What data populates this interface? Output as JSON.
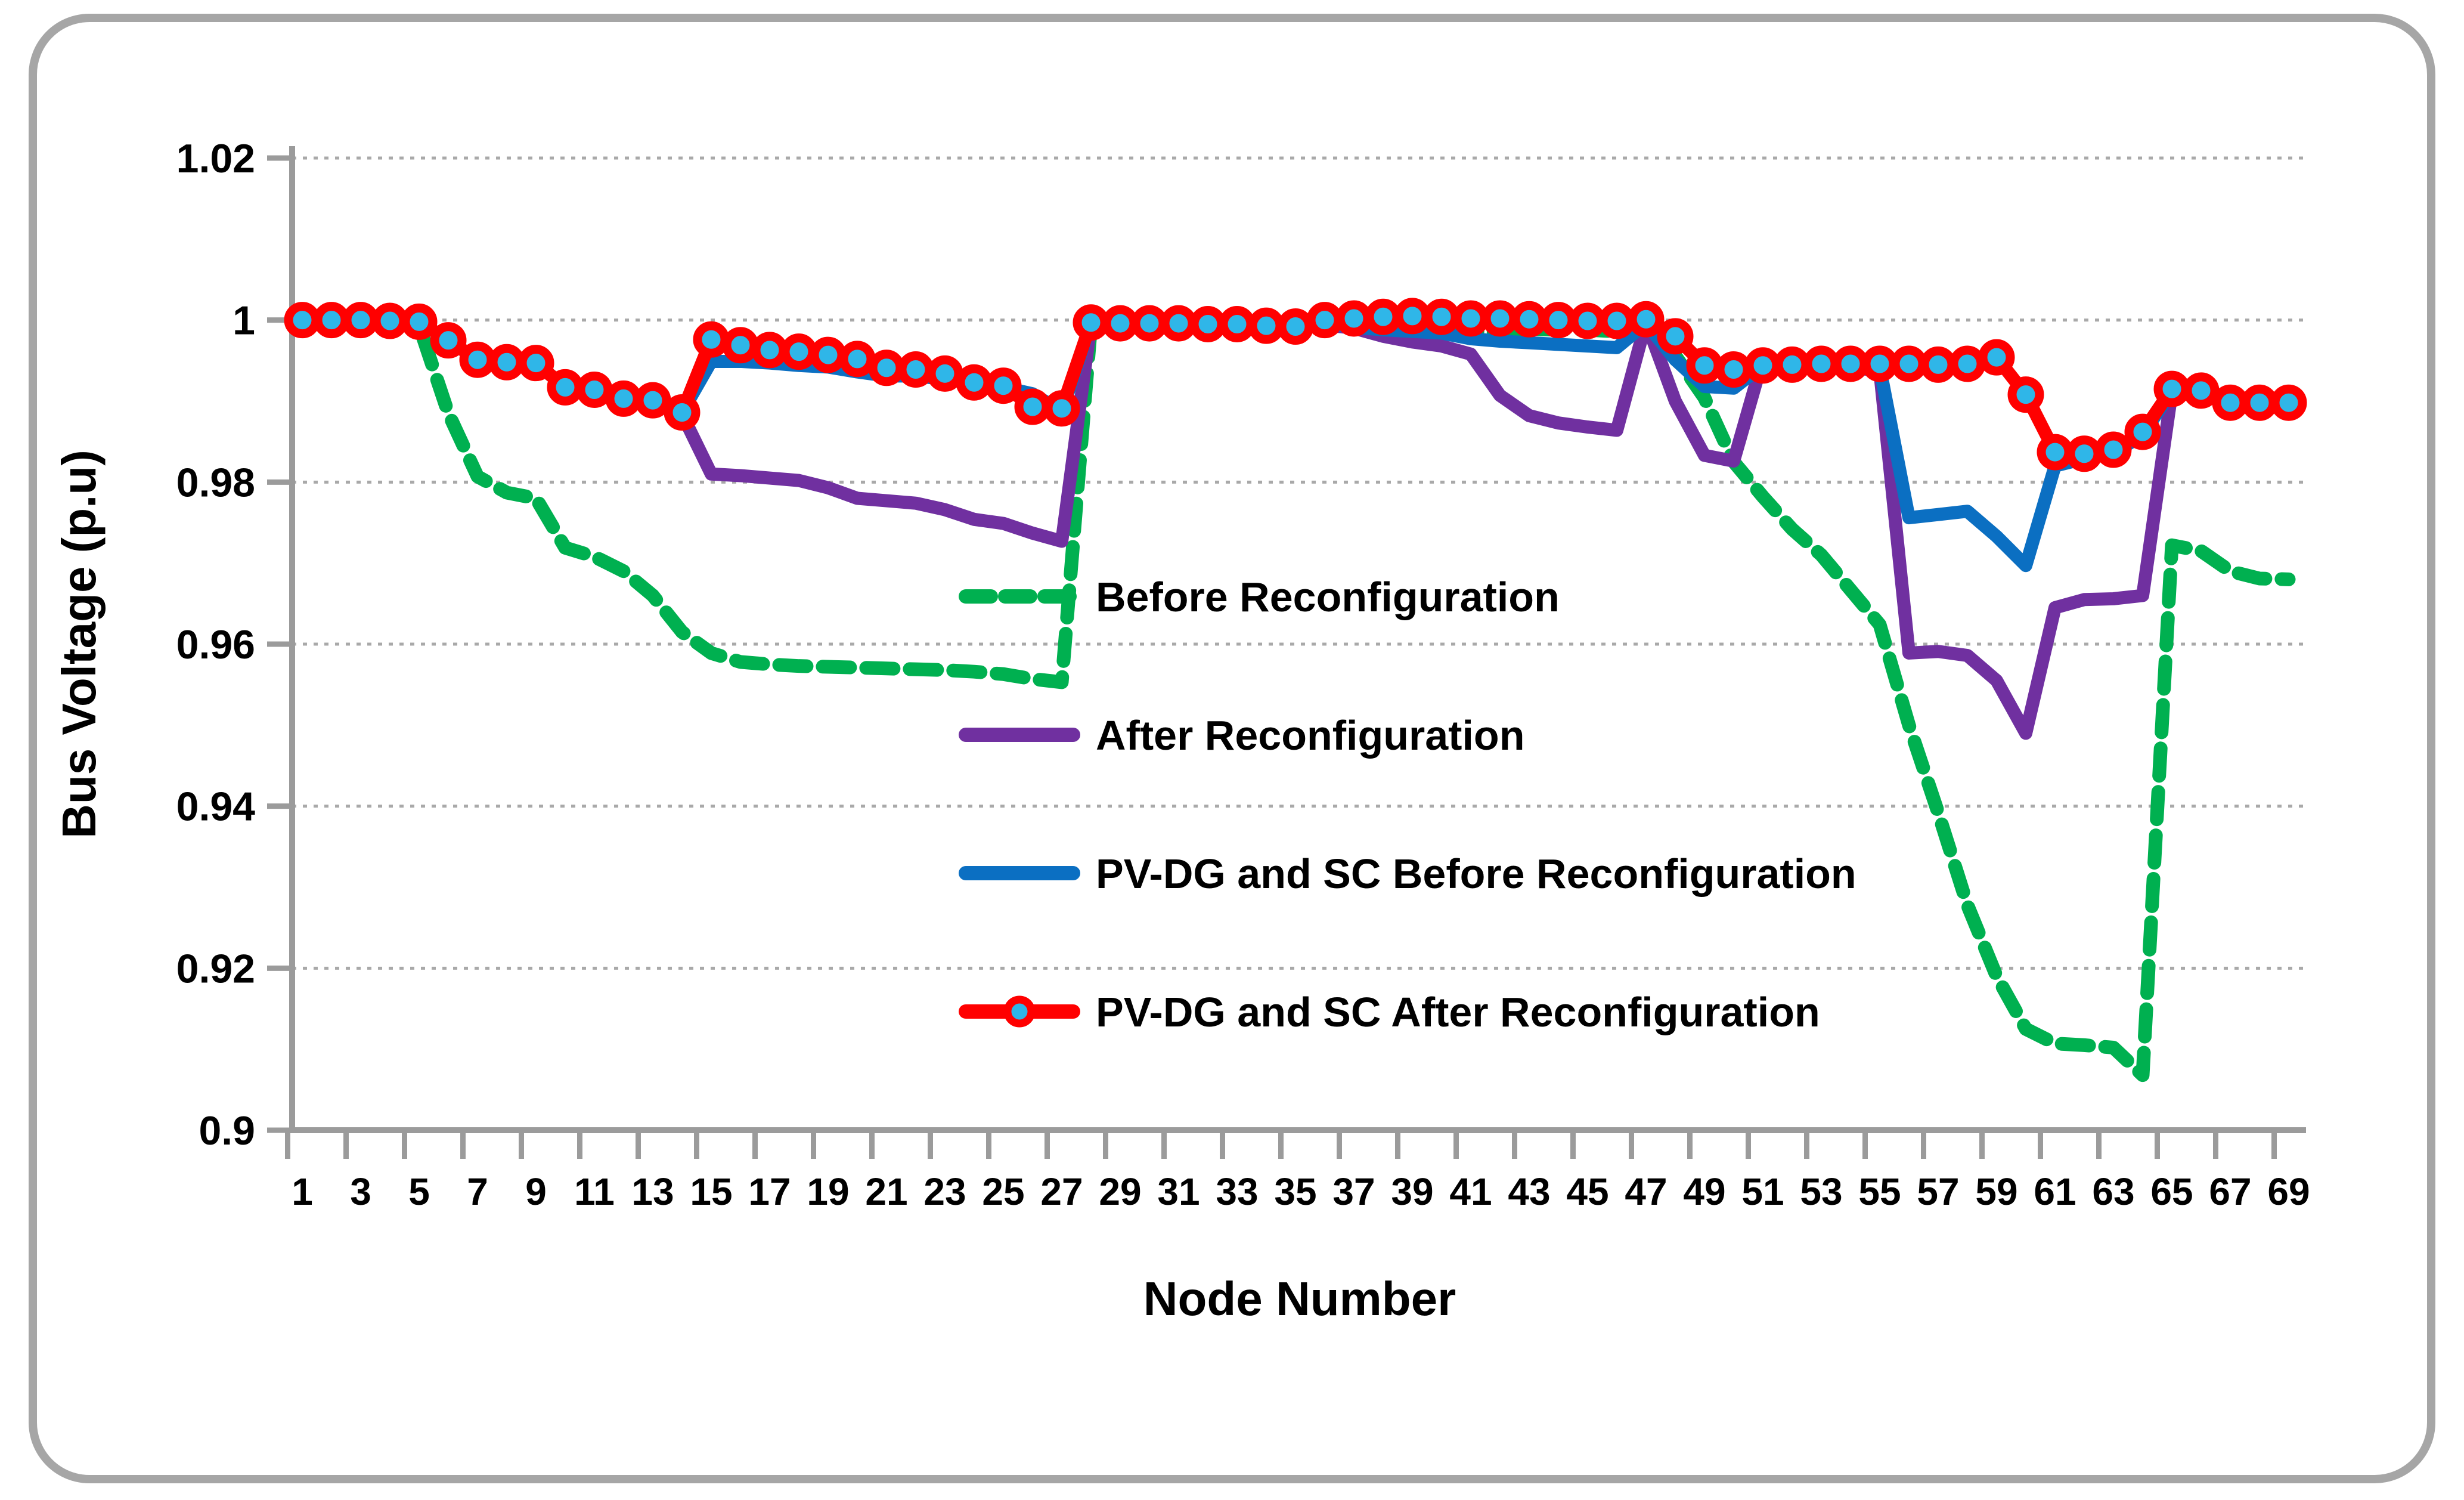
{
  "chart_data": {
    "type": "line",
    "title": "",
    "xlabel": "Node Number",
    "ylabel": "Bus Voltage (p.u)",
    "ylim": [
      0.9,
      1.02
    ],
    "grid": true,
    "legend_position": "inside-center",
    "y_ticks": [
      {
        "label": "1.02",
        "value": 1.02
      },
      {
        "label": "1",
        "value": 1.0
      },
      {
        "label": "0.98",
        "value": 0.98
      },
      {
        "label": "0.96",
        "value": 0.96
      },
      {
        "label": "0.94",
        "value": 0.94
      },
      {
        "label": "0.92",
        "value": 0.92
      },
      {
        "label": "0.9",
        "value": 0.9
      }
    ],
    "x_tick_labels": [
      "1",
      "3",
      "5",
      "7",
      "9",
      "11",
      "13",
      "15",
      "17",
      "19",
      "21",
      "23",
      "25",
      "27",
      "29",
      "31",
      "33",
      "35",
      "37",
      "39",
      "41",
      "43",
      "45",
      "47",
      "49",
      "51",
      "53",
      "55",
      "57",
      "59",
      "61",
      "63",
      "65",
      "67",
      "69"
    ],
    "x_nodes": [
      1,
      2,
      3,
      4,
      5,
      6,
      7,
      8,
      9,
      10,
      11,
      12,
      13,
      14,
      15,
      16,
      17,
      18,
      19,
      20,
      21,
      22,
      23,
      24,
      25,
      26,
      27,
      28,
      29,
      30,
      31,
      32,
      33,
      34,
      35,
      36,
      37,
      38,
      39,
      40,
      41,
      42,
      43,
      44,
      45,
      46,
      47,
      48,
      49,
      50,
      51,
      52,
      53,
      54,
      55,
      56,
      57,
      58,
      59,
      60,
      61,
      62,
      63,
      64,
      65,
      66,
      67,
      68,
      69
    ],
    "series": [
      {
        "name": "Before Reconfiguration",
        "color": "#00B050",
        "style": "dashed",
        "marker": null,
        "values": [
          1.0,
          1.0,
          0.9999,
          0.9998,
          0.9993,
          0.9885,
          0.9807,
          0.9787,
          0.978,
          0.9719,
          0.9708,
          0.969,
          0.966,
          0.9615,
          0.9589,
          0.9578,
          0.9575,
          0.9573,
          0.9572,
          0.9571,
          0.957,
          0.9569,
          0.9568,
          0.9566,
          0.9563,
          0.9557,
          0.9553,
          0.9994,
          0.9994,
          0.9994,
          0.9993,
          0.9993,
          0.9993,
          0.9992,
          0.9991,
          0.9993,
          0.9992,
          0.999,
          0.9988,
          0.9987,
          0.9986,
          0.9985,
          0.9989,
          0.9988,
          0.9988,
          0.9986,
          0.9985,
          0.9956,
          0.9904,
          0.9825,
          0.9782,
          0.9742,
          0.971,
          0.9667,
          0.9624,
          0.95,
          0.9392,
          0.9278,
          0.919,
          0.9125,
          0.9107,
          0.9105,
          0.9102,
          0.9068,
          0.9722,
          0.9715,
          0.969,
          0.9681,
          0.968
        ]
      },
      {
        "name": "After Reconfiguration",
        "color": "#7030A0",
        "style": "solid",
        "marker": null,
        "values": [
          1.0,
          1.0,
          0.9999,
          0.9999,
          0.9998,
          0.9975,
          0.9951,
          0.9948,
          0.9947,
          0.9917,
          0.9914,
          0.9903,
          0.99,
          0.9884,
          0.981,
          0.9808,
          0.9805,
          0.9802,
          0.9793,
          0.978,
          0.9777,
          0.9774,
          0.9766,
          0.9754,
          0.9749,
          0.9737,
          0.9727,
          0.9996,
          0.9996,
          0.9996,
          0.9995,
          0.9995,
          0.9995,
          0.9993,
          0.9991,
          0.9994,
          0.999,
          0.998,
          0.9973,
          0.9968,
          0.9958,
          0.9907,
          0.9882,
          0.9873,
          0.9868,
          0.9864,
          0.9998,
          0.99,
          0.9833,
          0.9826,
          0.9952,
          0.9944,
          0.9941,
          0.9941,
          0.9938,
          0.9589,
          0.9591,
          0.9586,
          0.9555,
          0.949,
          0.9645,
          0.9655,
          0.9656,
          0.966,
          0.9912,
          0.991,
          0.9896,
          0.9895,
          0.9895
        ]
      },
      {
        "name": "PV-DG and SC Before Reconfiguration",
        "color": "#0B6FC2",
        "style": "solid",
        "marker": null,
        "values": [
          1.0,
          1.0,
          0.9999,
          0.9999,
          0.9998,
          0.9975,
          0.9951,
          0.9948,
          0.9947,
          0.9917,
          0.9914,
          0.9903,
          0.9901,
          0.9886,
          0.9949,
          0.9949,
          0.9947,
          0.9944,
          0.9942,
          0.9936,
          0.9931,
          0.9931,
          0.9927,
          0.9922,
          0.9917,
          0.9909,
          0.9887,
          0.9996,
          0.9996,
          0.9996,
          0.9995,
          0.9995,
          0.9995,
          0.9993,
          0.9992,
          0.9997,
          0.9991,
          0.9988,
          0.9986,
          0.9984,
          0.9977,
          0.9974,
          0.9972,
          0.997,
          0.9968,
          0.9966,
          0.9996,
          0.9951,
          0.9918,
          0.9916,
          0.9944,
          0.9943,
          0.9943,
          0.9943,
          0.9942,
          0.9756,
          0.976,
          0.9764,
          0.9733,
          0.9697,
          0.982,
          0.9829,
          0.9836,
          0.9858,
          0.9913,
          0.991,
          0.9897,
          0.9896,
          0.9896
        ]
      },
      {
        "name": "PV-DG and SC After Reconfiguration",
        "color": "#FF0000",
        "style": "solid",
        "marker": {
          "shape": "circle",
          "fill": "#2FB6E8",
          "stroke": "#FF0000"
        },
        "values": [
          1.0,
          1.0,
          1.0,
          0.9999,
          0.9998,
          0.9975,
          0.9951,
          0.9948,
          0.9947,
          0.9917,
          0.9914,
          0.9903,
          0.9901,
          0.9886,
          0.9976,
          0.9969,
          0.9963,
          0.9961,
          0.9957,
          0.9952,
          0.9941,
          0.9939,
          0.9934,
          0.9923,
          0.9919,
          0.9893,
          0.9891,
          0.9997,
          0.9996,
          0.9996,
          0.9996,
          0.9995,
          0.9995,
          0.9993,
          0.9992,
          1.0,
          1.0002,
          1.0004,
          1.0005,
          1.0004,
          1.0002,
          1.0002,
          1.0001,
          1.0,
          0.9999,
          0.9999,
          1.0001,
          0.998,
          0.9944,
          0.9939,
          0.9944,
          0.9945,
          0.9946,
          0.9946,
          0.9946,
          0.9946,
          0.9945,
          0.9946,
          0.9954,
          0.9908,
          0.9837,
          0.9835,
          0.984,
          0.9862,
          0.9915,
          0.9913,
          0.9898,
          0.9898,
          0.9898
        ]
      }
    ]
  },
  "legend": {
    "items": [
      {
        "label": "Before Reconfiguration"
      },
      {
        "label": "After Reconfiguration"
      },
      {
        "label": "PV-DG and SC Before Reconfiguration"
      },
      {
        "label": "PV-DG and SC After Reconfiguration"
      }
    ]
  },
  "frame": {
    "border_color": "#A6A6A6",
    "axis_color": "#9B9B9B",
    "gridline_color": "#A9A9A9",
    "background": "#FFFFFF"
  }
}
